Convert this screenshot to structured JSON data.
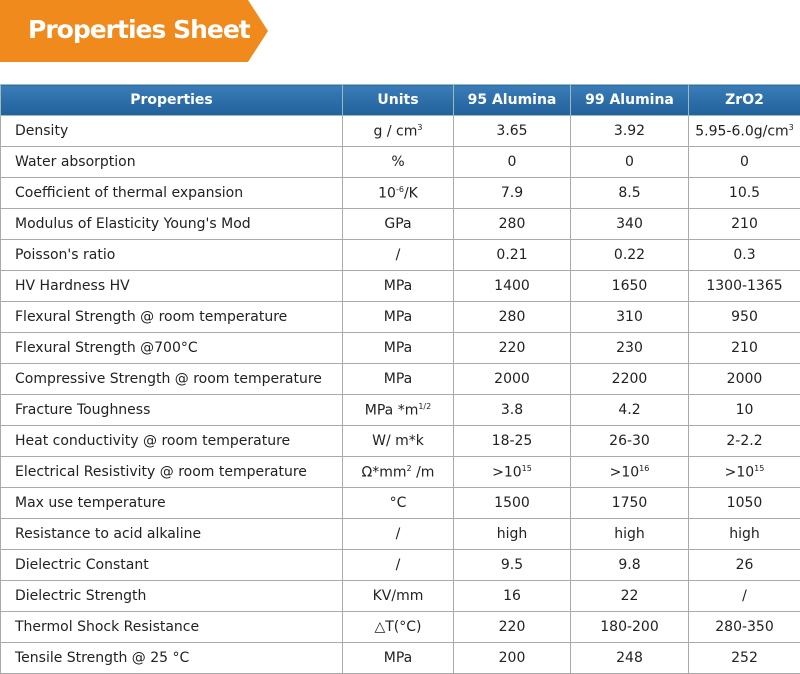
{
  "header": {
    "title": "Properties Sheet"
  },
  "table": {
    "columns": [
      "Properties",
      "Units",
      "95 Alumina",
      "99 Alumina",
      "ZrO2"
    ],
    "rows": [
      [
        "Density",
        {
          "base": "g / cm",
          "sup": "3"
        },
        "3.65",
        "3.92",
        {
          "base": "5.95-6.0g/cm",
          "sup": "3"
        }
      ],
      [
        "Water absorption",
        "%",
        "0",
        "0",
        "0"
      ],
      [
        "Coefficient of thermal expansion",
        {
          "base": "10",
          "sup": "-6",
          "after": "/K"
        },
        "7.9",
        "8.5",
        "10.5"
      ],
      [
        "Modulus of Elasticity Young's Mod",
        "GPa",
        "280",
        "340",
        "210"
      ],
      [
        "Poisson's ratio",
        "/",
        "0.21",
        "0.22",
        "0.3"
      ],
      [
        "HV Hardness  HV",
        "MPa",
        "1400",
        "1650",
        "1300-1365"
      ],
      [
        "Flexural Strength @ room temperature",
        "MPa",
        "280",
        "310",
        "950"
      ],
      [
        "Flexural Strength @700°C",
        "MPa",
        "220",
        "230",
        "210"
      ],
      [
        "Compressive Strength @ room temperature",
        "MPa",
        "2000",
        "2200",
        "2000"
      ],
      [
        "Fracture Toughness",
        {
          "base": "MPa *m",
          "sup": "1/2"
        },
        "3.8",
        "4.2",
        "10"
      ],
      [
        "Heat conductivity @ room temperature",
        "W/ m*k",
        "18-25",
        "26-30",
        "2-2.2"
      ],
      [
        "Electrical Resistivity @ room temperature",
        {
          "base": "Ω*mm",
          "sup": "2",
          "after": " /m"
        },
        {
          "base": ">10",
          "sup": "15"
        },
        {
          "base": ">10",
          "sup": "16"
        },
        {
          "base": ">10",
          "sup": "15"
        }
      ],
      [
        "Max use temperature",
        "°C",
        "1500",
        "1750",
        "1050"
      ],
      [
        "Resistance to acid alkaline",
        "/",
        "high",
        "high",
        "high"
      ],
      [
        "Dielectric Constant",
        "/",
        "9.5",
        "9.8",
        "26"
      ],
      [
        "Dielectric  Strength",
        "KV/mm",
        "16",
        "22",
        "/"
      ],
      [
        "Thermol Shock Resistance",
        "△T(°C)",
        "220",
        "180-200",
        "280-350"
      ],
      [
        "Tensile Strength @ 25 °C",
        "MPa",
        "200",
        "248",
        "252"
      ]
    ]
  }
}
